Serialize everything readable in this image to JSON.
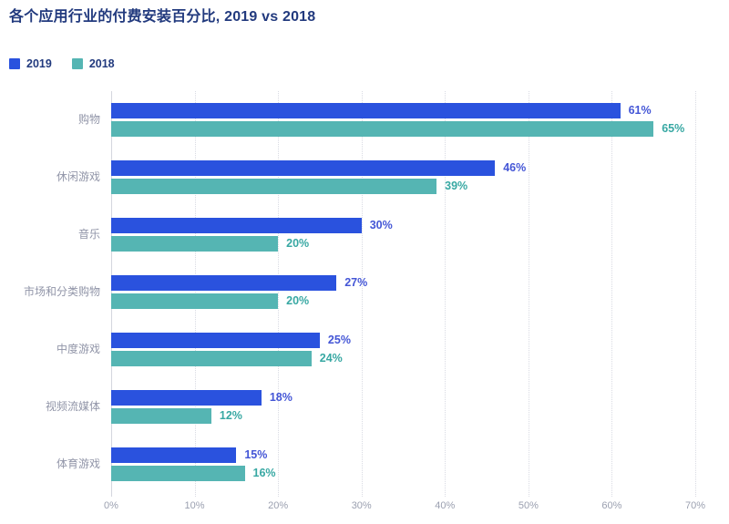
{
  "title": "各个应用行业的付费安装百分比, 2019 vs 2018",
  "legend": {
    "items": [
      {
        "label": "2019",
        "color": "#2A52DE"
      },
      {
        "label": "2018",
        "color": "#55B5B3"
      }
    ]
  },
  "chart_data": {
    "type": "bar",
    "orientation": "horizontal",
    "title": "各个应用行业的付费安装百分比, 2019 vs 2018",
    "categories": [
      "购物",
      "休闲游戏",
      "音乐",
      "市场和分类购物",
      "中度游戏",
      "视频流媒体",
      "体育游戏"
    ],
    "series": [
      {
        "name": "2019",
        "color": "#2A52DE",
        "label_color": "#4456D6",
        "values": [
          61,
          46,
          30,
          27,
          25,
          18,
          15
        ]
      },
      {
        "name": "2018",
        "color": "#55B5B3",
        "label_color": "#38A8A3",
        "values": [
          65,
          39,
          20,
          20,
          24,
          12,
          16
        ]
      }
    ],
    "value_suffix": "%",
    "xlim": [
      0,
      70
    ],
    "x_tick_labels": [
      "0%",
      "10%",
      "20%",
      "30%",
      "40%",
      "50%",
      "60%",
      "70%"
    ],
    "grid": "vertical-dotted",
    "legend_position": "top-left"
  },
  "colors": {
    "background": "#FFFFFF",
    "title_text": "#223A7E",
    "legend_text": "#223A7E",
    "category_label": "#9195A8",
    "axis_label": "#9BA0B0",
    "gridline": "#D9DBE3",
    "axis_line": "#D4D6DE"
  }
}
